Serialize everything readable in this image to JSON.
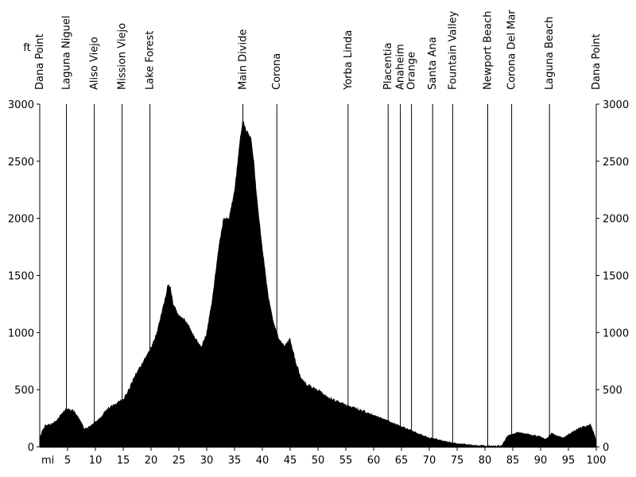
{
  "chart_data": {
    "type": "area",
    "title": "",
    "x_unit_label": "mi",
    "y_unit_label": "ft",
    "xlim": [
      0,
      100
    ],
    "ylim": [
      0,
      3000
    ],
    "x_ticks": [
      5,
      10,
      15,
      20,
      25,
      30,
      35,
      40,
      45,
      50,
      55,
      60,
      65,
      70,
      75,
      80,
      85,
      90,
      95,
      100
    ],
    "y_ticks": [
      0,
      500,
      1000,
      1500,
      2000,
      2500,
      3000
    ],
    "fill_color": "#000000",
    "grid": false,
    "places": [
      {
        "name": "Dana Point",
        "mile": 0
      },
      {
        "name": "Laguna Niguel",
        "mile": 4.8
      },
      {
        "name": "Aliso Viejo",
        "mile": 9.8
      },
      {
        "name": "Mission Viejo",
        "mile": 14.8
      },
      {
        "name": "Lake Forest",
        "mile": 19.8
      },
      {
        "name": "Main Divide",
        "mile": 36.5
      },
      {
        "name": "Corona",
        "mile": 42.6
      },
      {
        "name": "Yorba Linda",
        "mile": 55.4
      },
      {
        "name": "Placentia",
        "mile": 62.6
      },
      {
        "name": "Anaheim",
        "mile": 64.8
      },
      {
        "name": "Orange",
        "mile": 66.8
      },
      {
        "name": "Santa Ana",
        "mile": 70.6
      },
      {
        "name": "Fountain Valley",
        "mile": 74.2
      },
      {
        "name": "Newport Beach",
        "mile": 80.5
      },
      {
        "name": "Corona Del Mar",
        "mile": 84.8
      },
      {
        "name": "Laguna Beach",
        "mile": 91.6
      },
      {
        "name": "Dana Point",
        "mile": 100
      }
    ],
    "x": [
      0,
      0.5,
      1,
      2,
      3,
      4,
      5,
      6,
      7,
      8,
      9,
      10,
      11,
      12,
      13,
      14,
      15,
      16,
      17,
      18,
      19,
      20,
      21,
      22,
      22.5,
      23,
      23.5,
      24,
      25,
      26,
      27,
      28,
      29,
      30,
      31,
      32,
      33,
      33.5,
      34,
      35,
      36,
      36.5,
      37,
      37.5,
      38,
      38.5,
      39,
      40,
      41,
      42,
      43,
      44,
      45,
      46,
      47,
      48,
      50,
      52,
      55,
      58,
      60,
      62,
      64,
      66,
      68,
      70,
      72,
      74,
      76,
      78,
      80,
      82,
      83,
      84,
      86,
      88,
      90,
      91,
      92,
      94,
      96,
      97,
      98,
      99,
      100
    ],
    "y": [
      80,
      150,
      190,
      200,
      230,
      300,
      340,
      320,
      260,
      160,
      180,
      220,
      260,
      330,
      360,
      390,
      420,
      500,
      620,
      700,
      780,
      870,
      1000,
      1200,
      1300,
      1420,
      1400,
      1250,
      1150,
      1120,
      1050,
      950,
      880,
      1000,
      1300,
      1700,
      2000,
      2000,
      2000,
      2250,
      2700,
      2880,
      2780,
      2750,
      2700,
      2500,
      2200,
      1750,
      1350,
      1100,
      950,
      880,
      950,
      750,
      600,
      550,
      500,
      430,
      370,
      320,
      280,
      240,
      200,
      160,
      120,
      80,
      60,
      40,
      25,
      15,
      10,
      10,
      10,
      100,
      130,
      110,
      90,
      70,
      120,
      80,
      140,
      170,
      180,
      200,
      60
    ]
  }
}
